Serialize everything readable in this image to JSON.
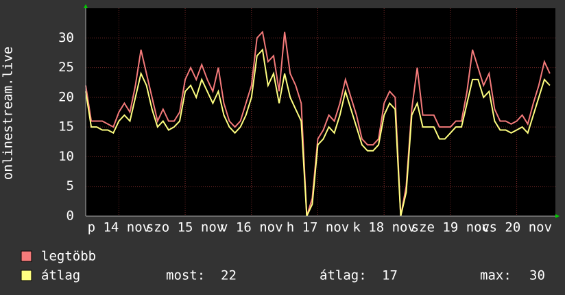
{
  "chart_data": {
    "type": "line",
    "ylabel": "onlinestream.live",
    "xlim": [
      0,
      170
    ],
    "xticks": [
      {
        "value": 12,
        "label": "p 14 nov"
      },
      {
        "value": 36,
        "label": "szo 15 nov"
      },
      {
        "value": 60,
        "label": "v 16 nov"
      },
      {
        "value": 84,
        "label": "h 17 nov"
      },
      {
        "value": 108,
        "label": "k 18 nov"
      },
      {
        "value": 132,
        "label": "sze 19 nov"
      },
      {
        "value": 156,
        "label": "cs 20 nov"
      }
    ],
    "ylim": [
      0,
      35
    ],
    "yticks": [
      0,
      5,
      10,
      15,
      20,
      25,
      30
    ],
    "grid": true,
    "x": [
      0,
      2,
      4,
      6,
      8,
      10,
      12,
      14,
      16,
      18,
      20,
      22,
      24,
      26,
      28,
      30,
      32,
      34,
      36,
      38,
      40,
      42,
      44,
      46,
      48,
      50,
      52,
      54,
      56,
      58,
      60,
      62,
      64,
      66,
      68,
      70,
      72,
      74,
      76,
      78,
      80,
      82,
      84,
      86,
      88,
      90,
      92,
      94,
      96,
      98,
      100,
      102,
      104,
      106,
      108,
      110,
      112,
      114,
      116,
      118,
      120,
      122,
      124,
      126,
      128,
      130,
      132,
      134,
      136,
      138,
      140,
      142,
      144,
      146,
      148,
      150,
      152,
      154,
      156,
      158,
      160,
      162,
      164,
      166,
      168
    ],
    "series": [
      {
        "name": "legtöbb",
        "color": "#f47a7a",
        "values": [
          22,
          16,
          16,
          16,
          15.5,
          15,
          17.5,
          19,
          17.5,
          22,
          28,
          24,
          20,
          16,
          18,
          16,
          16,
          17.5,
          23,
          25,
          23,
          25.5,
          23,
          21,
          25,
          19,
          16,
          15,
          16,
          19,
          22,
          30,
          31,
          26,
          27,
          21,
          31,
          24,
          22,
          19,
          0,
          3,
          13,
          14.5,
          17,
          16,
          19,
          23,
          20,
          17,
          13,
          12,
          12,
          13,
          19,
          21,
          20,
          0,
          5,
          18,
          25,
          17,
          17,
          17,
          15,
          15,
          15,
          16,
          16,
          21,
          28,
          25,
          22,
          24,
          18,
          16,
          16,
          15.5,
          16,
          17,
          15.5,
          19,
          22,
          26,
          24
        ]
      },
      {
        "name": "átlag",
        "color": "#ffff80",
        "values": [
          21,
          15,
          15,
          14.5,
          14.5,
          14,
          16,
          17,
          16,
          20,
          24,
          22,
          18,
          15,
          16,
          14.5,
          15,
          16,
          21,
          22,
          20,
          23,
          21,
          19,
          21,
          17,
          15,
          14,
          15,
          17,
          20,
          27,
          28,
          22,
          24,
          19,
          24,
          20,
          18,
          16,
          0,
          2,
          12,
          13,
          15,
          14,
          17,
          21,
          18,
          15,
          12,
          11,
          11,
          12,
          17,
          19,
          18,
          0,
          4,
          17,
          19,
          15,
          15,
          15,
          13,
          13,
          14,
          15,
          15,
          19,
          23,
          23,
          20,
          21,
          16,
          14.5,
          14.5,
          14,
          14.5,
          15,
          14,
          17,
          20,
          23,
          22
        ]
      }
    ],
    "stats": [
      {
        "label": "most:",
        "value": 22
      },
      {
        "label": "átlag:",
        "value": 17
      },
      {
        "label": "max:",
        "value": 30
      }
    ]
  }
}
